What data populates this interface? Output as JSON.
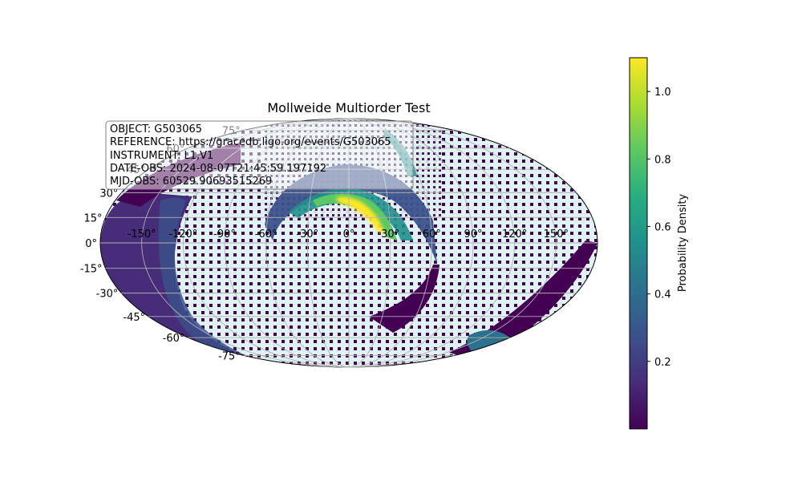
{
  "chart_data": {
    "type": "heatmap",
    "projection": "mollweide",
    "title": "Mollweide Multiorder Test",
    "lon_ticks": [
      "-150°",
      "-120°",
      "-90°",
      "-60°",
      "-30°",
      "0°",
      "30°",
      "60°",
      "90°",
      "120°",
      "150°"
    ],
    "lat_ticks": [
      "75°",
      "60°",
      "45°",
      "30°",
      "15°",
      "0°",
      "-15°",
      "-30°",
      "-45°",
      "-60°",
      "-75°"
    ],
    "lon_values": [
      -150,
      -120,
      -90,
      -60,
      -30,
      0,
      30,
      60,
      90,
      120,
      150
    ],
    "lat_values": [
      75,
      60,
      45,
      30,
      15,
      0,
      -15,
      -30,
      -45,
      -60,
      -75
    ],
    "grid": true,
    "info_box": [
      "OBJECT: G503065",
      "REFERENCE: https://gracedb.ligo.org/events/G503065",
      "INSTRUMENT: L1,V1",
      "DATE-OBS: 2024-08-07T21:45:59.197192",
      "MJD-OBS: 60529.90693515269"
    ],
    "colorbar": {
      "label": "Probability Density",
      "colormap": "viridis",
      "range": [
        0.0,
        1.1
      ],
      "ticks": [
        "0.2",
        "0.4",
        "0.6",
        "0.8",
        "1.0"
      ],
      "tick_values": [
        0.2,
        0.4,
        0.6,
        0.8,
        1.0
      ]
    },
    "colors": {
      "background_cells": "#e0f3f3",
      "low_density": "#440154",
      "peak": "#fde725"
    }
  }
}
